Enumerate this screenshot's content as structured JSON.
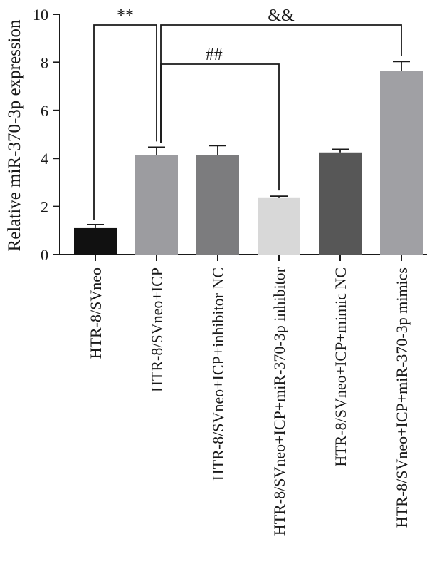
{
  "chart_data": {
    "type": "bar",
    "title": "",
    "xlabel": "",
    "ylabel": "Relative miR-370-3p expression",
    "ylim": [
      0,
      10
    ],
    "yticks": [
      0,
      2,
      4,
      6,
      8,
      10
    ],
    "grid": false,
    "categories": [
      "HTR-8/SVneo",
      "HTR-8/SVneo+ICP",
      "HTR-8/SVneo+ICP+inhibitor NC",
      "HTR-8/SVneo+ICP+miR-370-3p inhibitor",
      "HTR-8/SVneo+ICP+mimic NC",
      "HTR-8/SVneo+ICP+miR-370-3p mimics"
    ],
    "values": [
      1.1,
      4.15,
      4.15,
      2.38,
      4.25,
      7.65
    ],
    "errors": [
      0.15,
      0.32,
      0.38,
      0.05,
      0.13,
      0.38
    ],
    "colors": [
      "#111111",
      "#9c9ca0",
      "#7c7c7e",
      "#d8d8d8",
      "#575757",
      "#a0a0a4"
    ],
    "significance": [
      {
        "from": 0,
        "to": 1,
        "label": "**"
      },
      {
        "from": 1,
        "to": 5,
        "label": "&&"
      },
      {
        "from": 1,
        "to": 3,
        "label": "##"
      }
    ]
  }
}
